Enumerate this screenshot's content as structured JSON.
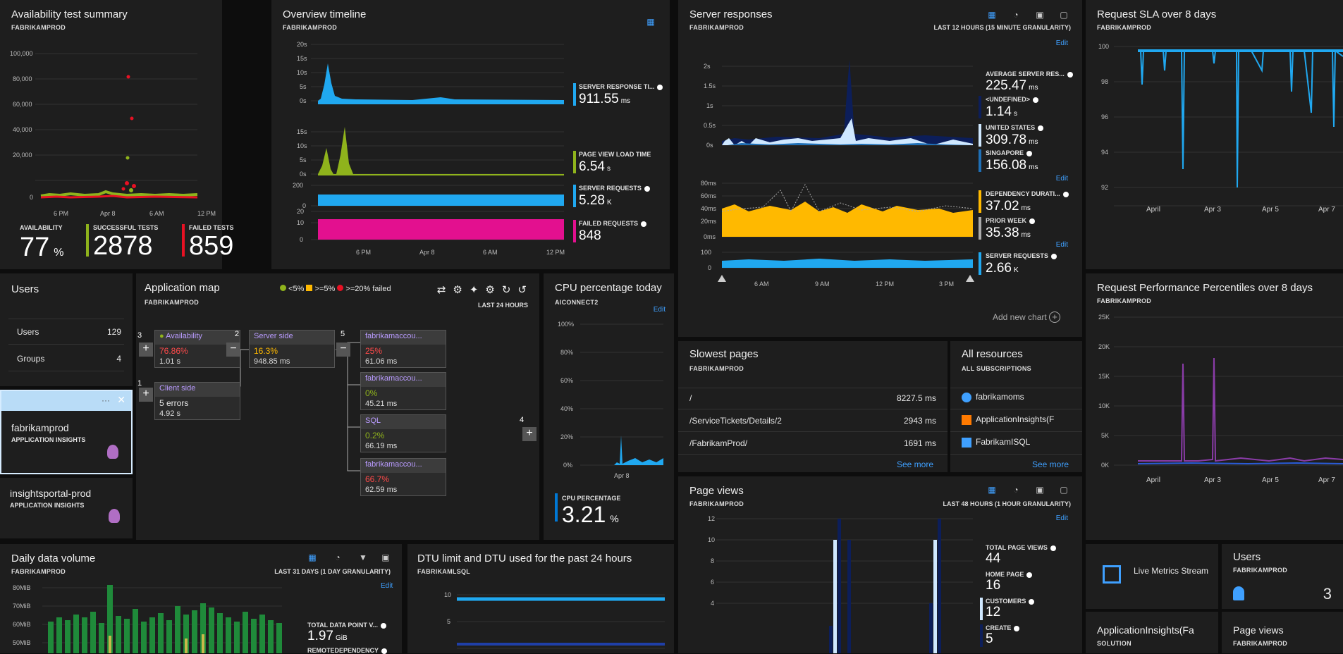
{
  "availability": {
    "title": "Availability test summary",
    "subtitle": "FABRIKAMPROD",
    "yticks": [
      "100,000",
      "80,000",
      "60,000",
      "40,000",
      "20,000",
      "0"
    ],
    "xticks": [
      "6 PM",
      "Apr 8",
      "6 AM",
      "12 PM"
    ],
    "metrics": [
      {
        "label": "AVAILABILITY",
        "value": "77",
        "unit": "%"
      },
      {
        "label": "SUCCESSFUL TESTS",
        "value": "2878",
        "unit": ""
      },
      {
        "label": "FAILED TESTS",
        "value": "859",
        "unit": ""
      }
    ]
  },
  "overview": {
    "title": "Overview timeline",
    "subtitle": "FABRIKAMPROD",
    "charts": [
      {
        "yticks": [
          "20s",
          "15s",
          "10s",
          "5s",
          "0s"
        ],
        "label": "SERVER RESPONSE TI...",
        "value": "911.55",
        "unit": "ms"
      },
      {
        "yticks": [
          "15s",
          "10s",
          "5s",
          "0s"
        ],
        "label": "PAGE VIEW LOAD TIME",
        "value": "6.54",
        "unit": "s"
      },
      {
        "yticks": [
          "200",
          "0"
        ],
        "label": "SERVER REQUESTS",
        "value": "5.28",
        "unit": "K"
      },
      {
        "yticks": [
          "20",
          "10",
          "0"
        ],
        "label": "FAILED REQUESTS",
        "value": "848",
        "unit": ""
      }
    ],
    "xticks": [
      "6 PM",
      "Apr 8",
      "6 AM",
      "12 PM"
    ]
  },
  "server": {
    "title": "Server responses",
    "subtitle": "FABRIKAMPROD",
    "granularity": "LAST 12 HOURS (15 MINUTE GRANULARITY)",
    "edit": "Edit",
    "yticks1": [
      "2s",
      "1.5s",
      "1s",
      "0.5s",
      "0s"
    ],
    "yticks2": [
      "80ms",
      "60ms",
      "40ms",
      "20ms",
      "0ms"
    ],
    "yticks3": [
      "100",
      "0"
    ],
    "xticks": [
      "6 AM",
      "9 AM",
      "12 PM",
      "3 PM"
    ],
    "metrics": [
      {
        "label": "AVERAGE SERVER RES...",
        "value": "225.47",
        "unit": "ms",
        "color": "#ffffff"
      },
      {
        "label": "<UNDEFINED>",
        "value": "1.14",
        "unit": "s",
        "color": "#0c1e5a"
      },
      {
        "label": "UNITED STATES",
        "value": "309.78",
        "unit": "ms",
        "color": "#cfe8ff"
      },
      {
        "label": "SINGAPORE",
        "value": "156.08",
        "unit": "ms",
        "color": "#1f6fb5"
      },
      {
        "label": "DEPENDENCY DURATI...",
        "value": "37.02",
        "unit": "ms",
        "color": "#ffb900"
      },
      {
        "label": "PRIOR WEEK",
        "value": "35.38",
        "unit": "ms",
        "color": "#aaaaaa"
      },
      {
        "label": "SERVER REQUESTS",
        "value": "2.66",
        "unit": "K",
        "color": "#20a8f0"
      }
    ],
    "add_chart": "Add new chart"
  },
  "sla": {
    "title": "Request SLA over 8 days",
    "subtitle": "FABRIKAMPROD",
    "yticks": [
      "100",
      "98",
      "96",
      "94",
      "92"
    ],
    "xticks": [
      "April",
      "Apr 3",
      "Apr 5",
      "Apr 7"
    ]
  },
  "users_list": {
    "title": "Users",
    "rows": [
      {
        "label": "Users",
        "value": "129"
      },
      {
        "label": "Groups",
        "value": "4"
      }
    ]
  },
  "resources_side": [
    {
      "name": "fabrikamprod",
      "type": "APPLICATION INSIGHTS"
    },
    {
      "name": "insightsportal-prod",
      "type": "APPLICATION INSIGHTS"
    }
  ],
  "appmap": {
    "title": "Application map",
    "subtitle": "FABRIKAMPROD",
    "legend": [
      "<5%",
      ">=5%",
      ">=20% failed"
    ],
    "range": "LAST 24 HOURS",
    "nodes": [
      {
        "name": "Availability",
        "v1": "76.86%",
        "v2": "1.01 s"
      },
      {
        "name": "Client side",
        "v1": "5 errors",
        "v2": "4.92 s"
      },
      {
        "name": "Server side",
        "v1": "16.3%",
        "v2": "948.85 ms"
      },
      {
        "name": "fabrikamaccou...",
        "v1": "25%",
        "v2": "61.06 ms"
      },
      {
        "name": "fabrikamaccou...",
        "v1": "0%",
        "v2": "45.21 ms"
      },
      {
        "name": "SQL",
        "v1": "0.2%",
        "v2": "66.19 ms"
      },
      {
        "name": "fabrikamaccou...",
        "v1": "66.7%",
        "v2": "62.59 ms"
      }
    ],
    "counts": [
      "3",
      "1",
      "2",
      "5",
      "4"
    ]
  },
  "cpu": {
    "title": "CPU percentage today",
    "subtitle": "AICONNECT2",
    "edit": "Edit",
    "yticks": [
      "100%",
      "80%",
      "60%",
      "40%",
      "20%",
      "0%"
    ],
    "xticks": [
      "Apr 8"
    ],
    "label": "CPU PERCENTAGE",
    "value": "3.21",
    "unit": "%"
  },
  "slowest": {
    "title": "Slowest pages",
    "subtitle": "FABRIKAMPROD",
    "rows": [
      {
        "page": "/",
        "time": "8227.5 ms"
      },
      {
        "page": "/ServiceTickets/Details/2",
        "time": "2943 ms"
      },
      {
        "page": "/FabrikamProd/",
        "time": "1691 ms"
      }
    ],
    "more": "See more"
  },
  "allres": {
    "title": "All resources",
    "subtitle": "ALL SUBSCRIPTIONS",
    "rows": [
      "fabrikamoms",
      "ApplicationInsights(F",
      "FabrikamISQL"
    ],
    "more": "See more"
  },
  "rpp": {
    "title": "Request Performance Percentiles over 8 days",
    "subtitle": "FABRIKAMPROD",
    "yticks": [
      "25K",
      "20K",
      "15K",
      "10K",
      "5K",
      "0K"
    ],
    "xticks": [
      "April",
      "Apr 3",
      "Apr 5",
      "Apr 7"
    ]
  },
  "daily": {
    "title": "Daily data volume",
    "subtitle": "FABRIKAMPROD",
    "granularity": "LAST 31 DAYS (1 DAY GRANULARITY)",
    "edit": "Edit",
    "yticks": [
      "80MiB",
      "70MiB",
      "60MiB",
      "50MiB"
    ],
    "label1": "TOTAL DATA POINT V...",
    "value1": "1.97",
    "unit1": "GiB",
    "label2": "REMOTEDEPENDENCY"
  },
  "dtu": {
    "title": "DTU limit and DTU used for the past 24 hours",
    "subtitle": "FABRIKAMLSQL",
    "yticks": [
      "10",
      "5"
    ]
  },
  "pageviews": {
    "title": "Page views",
    "subtitle": "FABRIKAMPROD",
    "granularity": "LAST 48 HOURS (1 HOUR GRANULARITY)",
    "edit": "Edit",
    "yticks": [
      "12",
      "10",
      "8",
      "6",
      "4"
    ],
    "metrics": [
      {
        "label": "TOTAL PAGE VIEWS",
        "value": "44"
      },
      {
        "label": "HOME PAGE",
        "value": "16"
      },
      {
        "label": "CUSTOMERS",
        "value": "12"
      },
      {
        "label": "CREATE",
        "value": "5"
      }
    ]
  },
  "live": {
    "label": "Live Metrics Stream"
  },
  "users_tile": {
    "title": "Users",
    "subtitle": "FABRIKAMPROD",
    "value": "3"
  },
  "appins_tile": {
    "title": "ApplicationInsights(Fa",
    "subtitle": "SOLUTION"
  },
  "pv_tile": {
    "title": "Page views",
    "subtitle": "FABRIKAMPROD"
  }
}
